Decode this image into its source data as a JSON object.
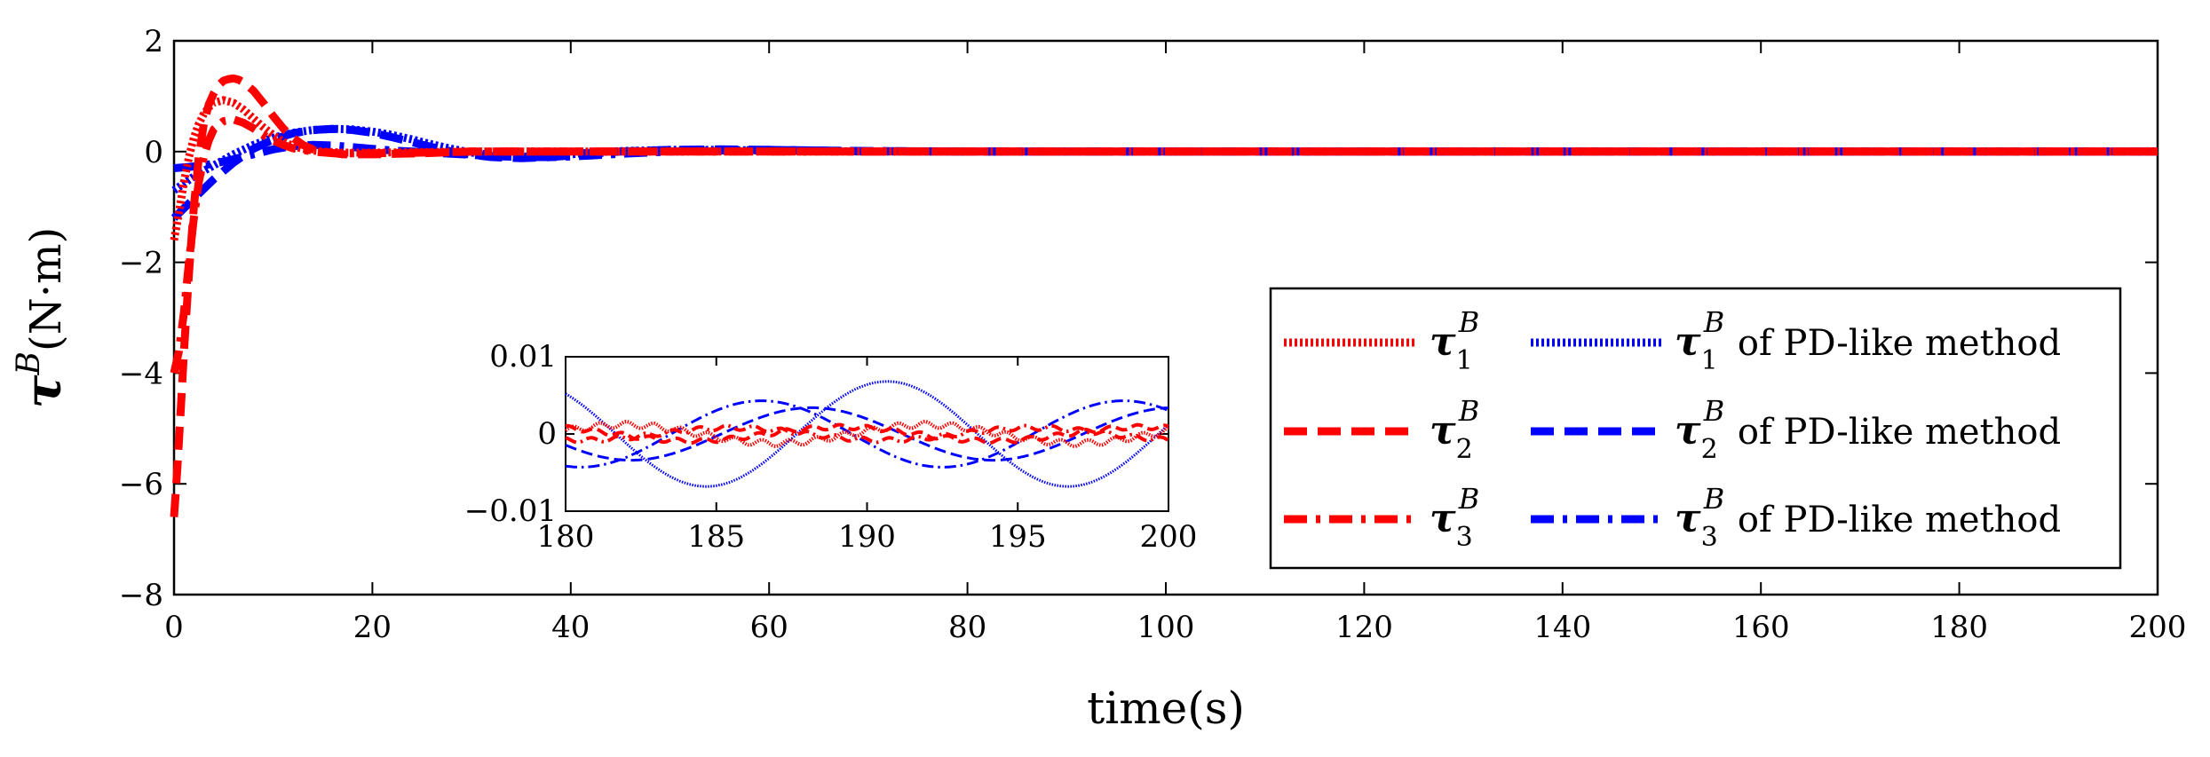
{
  "chart_data": {
    "type": "line",
    "title": "",
    "xlabel": "time(s)",
    "ylabel": {
      "symbol": "τ",
      "superscript": "B",
      "unit": "(N·m)"
    },
    "xlim": [
      0,
      200
    ],
    "ylim": [
      -8,
      2
    ],
    "xticks": [
      0,
      20,
      40,
      60,
      80,
      100,
      120,
      140,
      160,
      180,
      200
    ],
    "yticks": [
      -8,
      -6,
      -4,
      -2,
      0,
      2
    ],
    "grid": false,
    "legend_position": "right-middle",
    "series": [
      {
        "name": "τ1B",
        "symbol": "τ",
        "sub": "1",
        "sup": "B",
        "suffix": "",
        "color": "#ff0000",
        "style": "dotted",
        "x": [
          0,
          0.5,
          1,
          1.5,
          2,
          2.5,
          3,
          3.5,
          4,
          5,
          6,
          7,
          8,
          9,
          10,
          11,
          12,
          13,
          14,
          15,
          17,
          20,
          25,
          30,
          40,
          60,
          200
        ],
        "y": [
          -1.6,
          -1.1,
          -0.55,
          -0.1,
          0.25,
          0.5,
          0.68,
          0.8,
          0.88,
          0.93,
          0.88,
          0.76,
          0.6,
          0.44,
          0.3,
          0.18,
          0.1,
          0.05,
          0.02,
          0.0,
          -0.02,
          -0.02,
          -0.01,
          0.0,
          0.0,
          0.0,
          0.0
        ]
      },
      {
        "name": "τ2B",
        "symbol": "τ",
        "sub": "2",
        "sup": "B",
        "suffix": "",
        "color": "#ff0000",
        "style": "dashed",
        "x": [
          0,
          0.3,
          0.7,
          1,
          1.5,
          2,
          2.5,
          3,
          3.5,
          4,
          4.5,
          5,
          5.5,
          6,
          6.5,
          7,
          8,
          9,
          10,
          11,
          12,
          13,
          14,
          15,
          17,
          20,
          25,
          30,
          40,
          60,
          200
        ],
        "y": [
          -6.6,
          -5.8,
          -4.6,
          -3.6,
          -2.2,
          -1.0,
          -0.1,
          0.5,
          0.85,
          1.05,
          1.2,
          1.28,
          1.31,
          1.32,
          1.3,
          1.25,
          1.1,
          0.88,
          0.64,
          0.42,
          0.25,
          0.12,
          0.04,
          0.0,
          -0.05,
          -0.05,
          -0.03,
          0.0,
          0.0,
          0.0,
          0.0
        ]
      },
      {
        "name": "τ3B",
        "symbol": "τ",
        "sub": "3",
        "sup": "B",
        "suffix": "",
        "color": "#ff0000",
        "style": "dashdot",
        "x": [
          0,
          0.5,
          1,
          1.5,
          2,
          2.5,
          3,
          3.5,
          4,
          5,
          6,
          7,
          8,
          9,
          10,
          11,
          12,
          14,
          16,
          20,
          25,
          30,
          40,
          60,
          200
        ],
        "y": [
          -4.0,
          -3.6,
          -2.9,
          -2.0,
          -1.2,
          -0.55,
          -0.1,
          0.2,
          0.4,
          0.55,
          0.58,
          0.52,
          0.42,
          0.3,
          0.2,
          0.12,
          0.06,
          0.0,
          -0.03,
          -0.03,
          -0.02,
          0.0,
          0.0,
          0.0,
          0.0
        ]
      },
      {
        "name": "τ1B of PD-like method",
        "symbol": "τ",
        "sub": "1",
        "sup": "B",
        "suffix": " of PD-like method",
        "color": "#0000ff",
        "style": "dotted",
        "x": [
          0,
          2,
          4,
          6,
          8,
          10,
          12,
          14,
          16,
          18,
          20,
          22,
          24,
          26,
          28,
          30,
          32,
          35,
          38,
          40,
          42,
          45,
          50,
          55,
          60,
          65,
          70,
          80,
          90,
          100,
          200
        ],
        "y": [
          -0.7,
          -0.45,
          -0.25,
          -0.05,
          0.12,
          0.25,
          0.34,
          0.39,
          0.41,
          0.4,
          0.36,
          0.3,
          0.22,
          0.13,
          0.05,
          -0.02,
          -0.06,
          -0.09,
          -0.08,
          -0.05,
          -0.02,
          0.01,
          0.03,
          0.03,
          0.02,
          0.01,
          0.0,
          0.0,
          0.0,
          0.0,
          0.0
        ]
      },
      {
        "name": "τ2B of PD-like method",
        "symbol": "τ",
        "sub": "2",
        "sup": "B",
        "suffix": " of PD-like method",
        "color": "#0000ff",
        "style": "dashed",
        "x": [
          0,
          2,
          4,
          6,
          8,
          10,
          12,
          14,
          16,
          18,
          20,
          22,
          24,
          26,
          28,
          30,
          32,
          35,
          38,
          40,
          42,
          45,
          50,
          55,
          60,
          65,
          70,
          80,
          90,
          100,
          200
        ],
        "y": [
          -1.2,
          -0.85,
          -0.5,
          -0.2,
          0.05,
          0.22,
          0.33,
          0.39,
          0.41,
          0.39,
          0.34,
          0.26,
          0.17,
          0.08,
          0.0,
          -0.06,
          -0.1,
          -0.12,
          -0.1,
          -0.07,
          -0.04,
          0.0,
          0.03,
          0.04,
          0.03,
          0.02,
          0.01,
          0.0,
          0.0,
          0.0,
          0.0
        ]
      },
      {
        "name": "τ3B of PD-like method",
        "symbol": "τ",
        "sub": "3",
        "sup": "B",
        "suffix": " of PD-like method",
        "color": "#0000ff",
        "style": "dashdot",
        "x": [
          0,
          2,
          4,
          6,
          8,
          10,
          12,
          14,
          16,
          18,
          20,
          22,
          24,
          26,
          28,
          30,
          32,
          35,
          38,
          40,
          42,
          45,
          50,
          55,
          60,
          65,
          70,
          80,
          90,
          100,
          200
        ],
        "y": [
          -0.3,
          -0.27,
          -0.22,
          -0.14,
          -0.05,
          0.04,
          0.1,
          0.12,
          0.11,
          0.08,
          0.05,
          0.02,
          0.0,
          -0.02,
          -0.04,
          -0.06,
          -0.08,
          -0.1,
          -0.1,
          -0.09,
          -0.07,
          -0.04,
          0.0,
          0.02,
          0.03,
          0.02,
          0.01,
          0.0,
          0.0,
          0.0,
          0.0
        ]
      }
    ],
    "inset": {
      "xlim": [
        180,
        200
      ],
      "ylim": [
        -0.01,
        0.01
      ],
      "xticks": [
        180,
        185,
        190,
        195,
        200
      ],
      "yticks": [
        -0.01,
        0,
        0.01
      ],
      "ytick_labels": [
        "−0.01",
        "0",
        "0.01"
      ],
      "series": [
        {
          "name": "τ1B",
          "color": "#ff0000",
          "style": "dotted",
          "amplitude": 0.0012,
          "period": 10,
          "phase_deg": 20,
          "ripple": 0.0004
        },
        {
          "name": "τ2B",
          "color": "#ff0000",
          "style": "dashed",
          "amplitude": 0.0009,
          "period": 10,
          "phase_deg": 120,
          "ripple": 0.0003
        },
        {
          "name": "τ3B",
          "color": "#ff0000",
          "style": "dashdot",
          "amplitude": 0.0008,
          "period": 10,
          "phase_deg": 250,
          "ripple": 0.0003
        },
        {
          "name": "τ1B of PD-like method",
          "color": "#0000ff",
          "style": "dotted",
          "amplitude": 0.0068,
          "period": 12,
          "phase_deg": 130,
          "ripple": 0
        },
        {
          "name": "τ2B of PD-like method",
          "color": "#0000ff",
          "style": "dashed",
          "amplitude": 0.0034,
          "period": 12,
          "phase_deg": 205,
          "ripple": 0
        },
        {
          "name": "τ3B of PD-like method",
          "color": "#0000ff",
          "style": "dashdot",
          "amplitude": 0.0043,
          "period": 12,
          "phase_deg": 255,
          "ripple": 0
        }
      ]
    }
  }
}
